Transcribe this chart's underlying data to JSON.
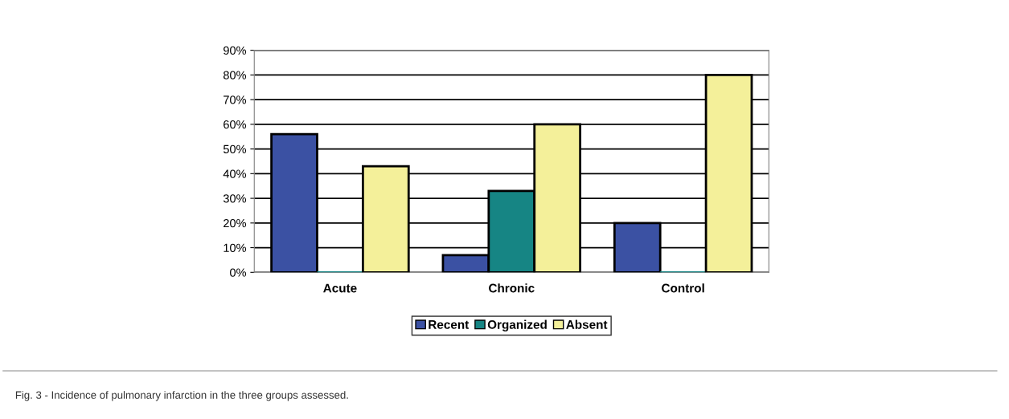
{
  "chart_data": {
    "type": "bar",
    "categories": [
      "Acute",
      "Chronic",
      "Control"
    ],
    "series": [
      {
        "name": "Recent",
        "color": "#3b51a3",
        "values": [
          56,
          7,
          20
        ]
      },
      {
        "name": "Organized",
        "color": "#168584",
        "values": [
          0,
          33,
          0
        ]
      },
      {
        "name": "Absent",
        "color": "#f4f09a",
        "values": [
          43,
          60,
          80
        ]
      }
    ],
    "ylim": [
      0,
      90
    ],
    "yticks": [
      {
        "value": 0,
        "label": "0%"
      },
      {
        "value": 10,
        "label": "10%"
      },
      {
        "value": 20,
        "label": "20%"
      },
      {
        "value": 30,
        "label": "30%"
      },
      {
        "value": 40,
        "label": "40%"
      },
      {
        "value": 50,
        "label": "50%"
      },
      {
        "value": 60,
        "label": "60%"
      },
      {
        "value": 70,
        "label": "70%"
      },
      {
        "value": 80,
        "label": "80%"
      },
      {
        "value": 90,
        "label": "90%"
      }
    ],
    "grid": "y",
    "legend": "bottom",
    "annotations": [
      "Fig. 3 - Incidence of pulmonary infarction in the three groups assessed."
    ]
  }
}
